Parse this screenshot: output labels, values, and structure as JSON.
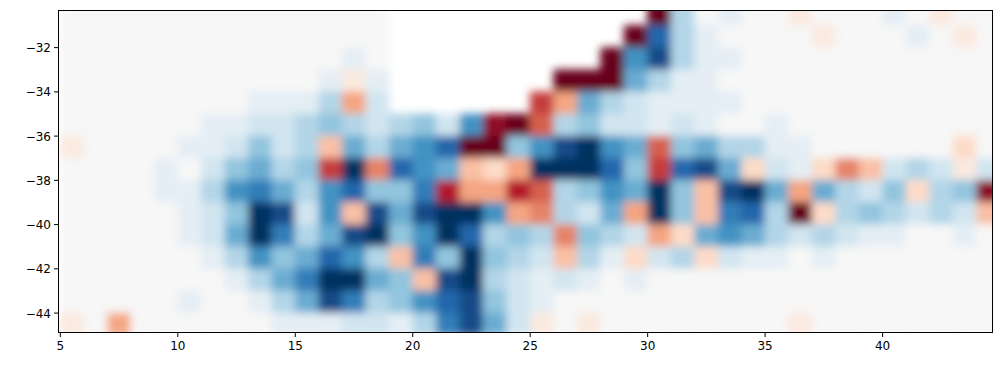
{
  "chart_data": {
    "type": "heatmap",
    "x": [
      5.5,
      6.5,
      7.5,
      8.5,
      9.5,
      10.5,
      11.5,
      12.5,
      13.5,
      14.5,
      15.5,
      16.5,
      17.5,
      18.5,
      19.5,
      20.5,
      21.5,
      22.5,
      23.5,
      24.5,
      25.5,
      26.5,
      27.5,
      28.5,
      29.5,
      30.5,
      31.5,
      32.5,
      33.5,
      34.5,
      35.5,
      36.5,
      37.5,
      38.5,
      39.5,
      40.5,
      41.5,
      42.5,
      43.5,
      44.5
    ],
    "y": [
      -30.5,
      -31.5,
      -32.5,
      -33.5,
      -34.5,
      -35.5,
      -36.5,
      -37.5,
      -38.5,
      -39.5,
      -40.5,
      -41.5,
      -42.5,
      -43.5,
      -44.5
    ],
    "values": [
      [
        0,
        0,
        0,
        0,
        0,
        0,
        0,
        0,
        0,
        0,
        0,
        0,
        0,
        0,
        null,
        null,
        null,
        null,
        null,
        null,
        null,
        null,
        null,
        null,
        null,
        1.3,
        -0.3,
        0,
        -0.1,
        0,
        0,
        0.1,
        0,
        0,
        0,
        -0.1,
        0,
        0.1,
        0,
        0
      ],
      [
        0,
        0,
        0,
        0,
        0,
        0,
        0,
        0,
        0,
        0,
        0,
        0,
        0,
        0,
        null,
        null,
        null,
        null,
        null,
        null,
        null,
        null,
        null,
        null,
        1.3,
        -0.8,
        -0.3,
        -0.1,
        0,
        0,
        0,
        0,
        0.1,
        0,
        0,
        0,
        -0.1,
        0,
        0.1,
        0
      ],
      [
        0,
        0,
        0,
        0,
        0,
        0,
        0,
        0,
        0,
        0,
        0,
        0,
        -0.1,
        0,
        null,
        null,
        null,
        null,
        null,
        null,
        null,
        null,
        null,
        1.3,
        -0.6,
        -0.9,
        -0.3,
        -0.1,
        -0.1,
        0,
        0,
        0,
        0,
        0,
        0,
        0,
        0,
        0,
        0,
        0
      ],
      [
        0,
        0,
        0,
        0,
        0,
        0,
        0,
        0,
        0,
        0,
        0,
        -0.1,
        0.1,
        -0.1,
        null,
        null,
        null,
        null,
        null,
        null,
        null,
        1.0,
        1.3,
        1.0,
        -0.5,
        -0.3,
        -0.1,
        -0.1,
        0,
        0,
        0,
        0,
        0,
        0,
        0,
        0,
        0,
        0,
        0,
        0
      ],
      [
        0,
        0,
        0,
        0,
        0,
        0,
        0,
        0,
        -0.1,
        -0.1,
        -0.1,
        -0.3,
        0.4,
        -0.2,
        null,
        null,
        null,
        null,
        null,
        null,
        0.7,
        0.4,
        -0.5,
        -0.3,
        -0.2,
        -0.1,
        -0.1,
        -0.1,
        -0.1,
        0,
        0,
        0,
        0,
        0,
        0,
        0,
        0,
        0,
        0,
        0
      ],
      [
        0,
        0,
        0,
        0,
        0,
        0,
        -0.1,
        -0.1,
        -0.2,
        -0.2,
        -0.3,
        -0.4,
        -0.3,
        -0.2,
        -0.3,
        -0.4,
        -0.2,
        -0.6,
        0.9,
        1.0,
        0.6,
        -0.3,
        -0.4,
        -0.2,
        -0.2,
        -0.1,
        -0.2,
        -0.1,
        0,
        0,
        -0.1,
        0,
        0,
        0,
        0,
        0,
        0,
        0,
        0,
        0
      ],
      [
        0.1,
        0,
        0,
        0,
        0,
        -0.1,
        -0.1,
        -0.2,
        -0.4,
        -0.2,
        -0.3,
        0.3,
        -0.5,
        -0.3,
        -0.5,
        -0.6,
        -0.8,
        1.1,
        1.0,
        -0.4,
        -0.6,
        -0.9,
        -1.0,
        -0.6,
        -0.5,
        0.6,
        -0.4,
        -0.5,
        -0.3,
        -0.3,
        -0.1,
        -0.1,
        0,
        0,
        0,
        0,
        0,
        0,
        0.2,
        0
      ],
      [
        0,
        0,
        0,
        0,
        -0.1,
        0,
        -0.2,
        -0.4,
        -0.5,
        -0.3,
        -0.4,
        0.7,
        -1.0,
        0.5,
        -0.8,
        -0.6,
        -0.5,
        0.3,
        0.2,
        0.4,
        -1.0,
        -1.1,
        -1.0,
        -0.8,
        -0.4,
        0.7,
        -0.8,
        -0.9,
        -0.5,
        0.2,
        -0.2,
        -0.1,
        0.2,
        0.5,
        0.3,
        -0.2,
        -0.3,
        -0.2,
        0.1,
        -0.2
      ],
      [
        0,
        0,
        0,
        0,
        -0.1,
        -0.1,
        -0.3,
        -0.6,
        -0.7,
        -0.5,
        -0.3,
        -0.6,
        -0.8,
        -0.4,
        -0.4,
        -0.7,
        0.8,
        0.4,
        0.4,
        0.8,
        0.6,
        -0.3,
        -0.4,
        -0.6,
        -0.5,
        -1.1,
        -0.4,
        0.3,
        -0.9,
        -1.0,
        -0.5,
        0.4,
        -0.5,
        -0.3,
        -0.2,
        -0.4,
        0.2,
        -0.3,
        -0.4,
        0.9
      ],
      [
        0,
        0,
        0,
        0,
        0,
        -0.1,
        -0.2,
        -0.4,
        -1.1,
        -0.9,
        -0.2,
        -0.6,
        0.3,
        -0.9,
        -0.5,
        -0.9,
        -1.1,
        -1.0,
        -0.6,
        0.4,
        0.5,
        -0.3,
        -0.2,
        -0.5,
        0.4,
        -1.0,
        -0.4,
        0.3,
        -0.7,
        -0.8,
        -0.3,
        1.0,
        0.2,
        -0.3,
        -0.4,
        -0.3,
        -0.2,
        -0.3,
        -0.2,
        0.3
      ],
      [
        0,
        0,
        0,
        0,
        0,
        -0.1,
        -0.2,
        -0.5,
        -1.1,
        -0.7,
        -0.3,
        -0.5,
        -0.9,
        -1.0,
        -0.4,
        -0.6,
        -1.1,
        -0.8,
        -0.3,
        -0.4,
        -0.3,
        0.5,
        -0.4,
        -0.3,
        -0.2,
        0.4,
        0.2,
        -0.5,
        -0.6,
        -0.5,
        -0.3,
        -0.2,
        -0.3,
        -0.2,
        -0.1,
        -0.1,
        0,
        0,
        -0.1,
        0
      ],
      [
        0,
        0,
        0,
        0,
        0,
        0,
        -0.1,
        -0.3,
        -0.6,
        -0.4,
        -0.5,
        -0.8,
        -0.6,
        -0.3,
        0.3,
        -0.7,
        -0.4,
        -1.0,
        -0.4,
        -0.3,
        -0.2,
        0.3,
        -0.3,
        -0.1,
        0.2,
        -0.2,
        -0.3,
        0.2,
        -0.2,
        -0.1,
        -0.1,
        0,
        -0.1,
        0,
        0,
        0,
        0,
        0,
        0,
        0
      ],
      [
        0,
        0,
        0,
        0,
        0,
        0,
        0,
        -0.1,
        -0.3,
        -0.5,
        -0.7,
        -1.0,
        -1.0,
        -0.5,
        -0.4,
        0.3,
        -0.9,
        -1.0,
        -0.3,
        -0.2,
        -0.1,
        -0.2,
        -0.1,
        0,
        -0.1,
        0,
        0,
        0,
        0,
        0,
        0,
        0,
        0,
        0,
        0,
        0,
        0,
        0,
        0,
        0
      ],
      [
        0,
        0,
        0,
        0,
        0,
        -0.1,
        0,
        0,
        -0.1,
        -0.3,
        -0.5,
        -0.9,
        -0.7,
        -0.3,
        -0.4,
        -0.6,
        -0.8,
        -0.9,
        -0.4,
        -0.2,
        -0.1,
        0,
        0,
        0,
        0,
        0,
        0,
        0,
        0,
        0,
        0,
        0,
        0,
        0,
        0,
        0,
        0,
        0,
        0,
        0
      ],
      [
        0.1,
        0,
        0.4,
        0,
        0,
        0,
        0,
        0,
        0,
        -0.1,
        -0.1,
        -0.1,
        -0.2,
        -0.2,
        -0.1,
        -0.3,
        -0.7,
        -0.9,
        -0.5,
        -0.2,
        0.1,
        0,
        0.1,
        0,
        0,
        0,
        0,
        0,
        0,
        0,
        0,
        0.1,
        0,
        0,
        0,
        0,
        0,
        0,
        0,
        0
      ]
    ],
    "color_range": [
      -1,
      1
    ],
    "xlim": [
      4.9,
      44.7
    ],
    "ylim": [
      -44.9,
      -30.3
    ],
    "xticks": [
      5,
      10,
      15,
      20,
      25,
      30,
      35,
      40
    ],
    "yticks": [
      {
        "value": -44,
        "label": "−44"
      },
      {
        "value": -42,
        "label": "−42"
      },
      {
        "value": -40,
        "label": "−40"
      },
      {
        "value": -38,
        "label": "−38"
      },
      {
        "value": -36,
        "label": "−36"
      },
      {
        "value": -34,
        "label": "−34"
      },
      {
        "value": -32,
        "label": "−32"
      }
    ]
  }
}
